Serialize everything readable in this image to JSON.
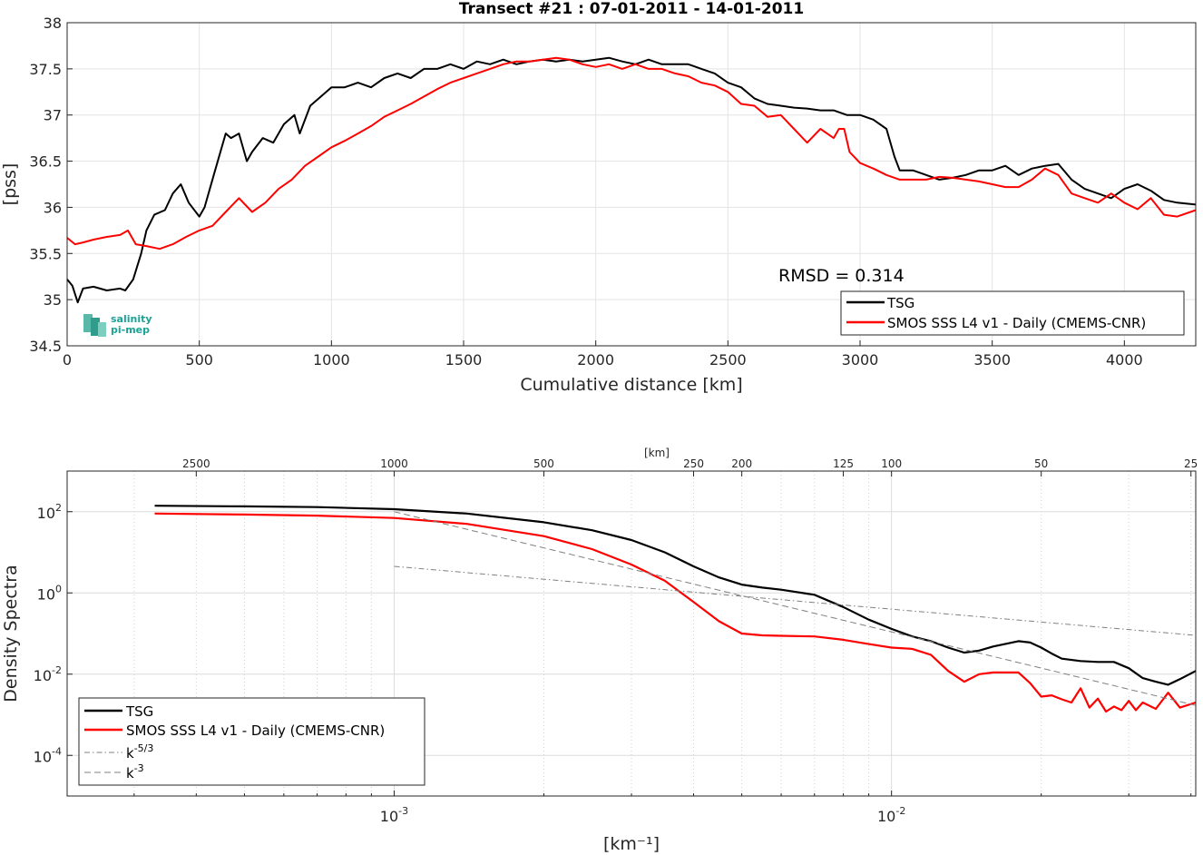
{
  "chart_data": [
    {
      "type": "line",
      "title": "Transect #21 : 07-01-2011 - 14-01-2011",
      "xlabel": "Cumulative distance [km]",
      "ylabel": "[pss]",
      "xlim": [
        0,
        4270
      ],
      "ylim": [
        34.5,
        38
      ],
      "xticks": [
        "0",
        "500",
        "1000",
        "1500",
        "2000",
        "2500",
        "3000",
        "3500",
        "4000"
      ],
      "yticks": [
        "34.5",
        "35",
        "35.5",
        "36",
        "36.5",
        "37",
        "37.5",
        "38"
      ],
      "grid": true,
      "legend_position": "bottom-right",
      "annotation": "RMSD = 0.314",
      "logo_lines": [
        "salinity",
        "pi-mep"
      ],
      "series": [
        {
          "name": "TSG",
          "color": "#000000",
          "x": [
            0,
            20,
            40,
            60,
            100,
            150,
            200,
            220,
            250,
            280,
            300,
            330,
            370,
            400,
            430,
            460,
            500,
            520,
            560,
            600,
            620,
            650,
            680,
            700,
            740,
            780,
            820,
            860,
            880,
            920,
            960,
            1000,
            1050,
            1100,
            1150,
            1200,
            1250,
            1300,
            1350,
            1400,
            1450,
            1500,
            1550,
            1600,
            1650,
            1700,
            1750,
            1800,
            1850,
            1900,
            1950,
            2000,
            2050,
            2100,
            2150,
            2200,
            2250,
            2300,
            2350,
            2400,
            2450,
            2500,
            2550,
            2600,
            2650,
            2700,
            2750,
            2800,
            2850,
            2900,
            2950,
            3000,
            3050,
            3100,
            3130,
            3150,
            3200,
            3250,
            3300,
            3350,
            3400,
            3450,
            3500,
            3550,
            3600,
            3650,
            3700,
            3750,
            3800,
            3850,
            3900,
            3950,
            4000,
            4050,
            4100,
            4150,
            4200,
            4270
          ],
          "y": [
            35.22,
            35.15,
            34.97,
            35.12,
            35.14,
            35.1,
            35.12,
            35.1,
            35.22,
            35.5,
            35.75,
            35.92,
            35.97,
            36.15,
            36.25,
            36.05,
            35.9,
            36.0,
            36.4,
            36.8,
            36.75,
            36.8,
            36.5,
            36.6,
            36.75,
            36.7,
            36.9,
            37.0,
            36.8,
            37.1,
            37.2,
            37.3,
            37.3,
            37.35,
            37.3,
            37.4,
            37.45,
            37.4,
            37.5,
            37.5,
            37.55,
            37.5,
            37.58,
            37.55,
            37.6,
            37.55,
            37.58,
            37.6,
            37.58,
            37.6,
            37.58,
            37.6,
            37.62,
            37.58,
            37.55,
            37.6,
            37.55,
            37.55,
            37.55,
            37.5,
            37.45,
            37.35,
            37.3,
            37.18,
            37.12,
            37.1,
            37.08,
            37.07,
            37.05,
            37.05,
            37.0,
            37.0,
            36.95,
            36.85,
            36.55,
            36.4,
            36.4,
            36.35,
            36.3,
            36.32,
            36.35,
            36.4,
            36.4,
            36.45,
            36.35,
            36.42,
            36.45,
            36.47,
            36.3,
            36.2,
            36.15,
            36.1,
            36.2,
            36.25,
            36.18,
            36.08,
            36.05,
            36.03
          ]
        },
        {
          "name": "SMOS SSS L4 v1 - Daily (CMEMS-CNR)",
          "color": "#ff0000",
          "x": [
            0,
            30,
            60,
            100,
            150,
            200,
            230,
            260,
            300,
            350,
            400,
            450,
            500,
            550,
            600,
            650,
            700,
            750,
            800,
            850,
            900,
            950,
            1000,
            1050,
            1100,
            1150,
            1200,
            1250,
            1300,
            1350,
            1400,
            1450,
            1500,
            1550,
            1600,
            1650,
            1700,
            1750,
            1800,
            1850,
            1900,
            1950,
            2000,
            2050,
            2100,
            2150,
            2200,
            2250,
            2300,
            2350,
            2400,
            2450,
            2500,
            2550,
            2600,
            2650,
            2700,
            2750,
            2800,
            2850,
            2900,
            2920,
            2940,
            2960,
            3000,
            3050,
            3100,
            3150,
            3200,
            3250,
            3300,
            3350,
            3400,
            3450,
            3500,
            3550,
            3600,
            3650,
            3700,
            3750,
            3800,
            3850,
            3900,
            3950,
            4000,
            4050,
            4100,
            4150,
            4200,
            4270
          ],
          "y": [
            35.67,
            35.6,
            35.62,
            35.65,
            35.68,
            35.7,
            35.75,
            35.6,
            35.58,
            35.55,
            35.6,
            35.68,
            35.75,
            35.8,
            35.95,
            36.1,
            35.95,
            36.05,
            36.2,
            36.3,
            36.45,
            36.55,
            36.65,
            36.72,
            36.8,
            36.88,
            36.98,
            37.05,
            37.12,
            37.2,
            37.28,
            37.35,
            37.4,
            37.45,
            37.5,
            37.55,
            37.58,
            37.58,
            37.6,
            37.62,
            37.6,
            37.55,
            37.52,
            37.55,
            37.5,
            37.55,
            37.5,
            37.5,
            37.45,
            37.42,
            37.35,
            37.32,
            37.25,
            37.12,
            37.1,
            36.98,
            37.0,
            36.85,
            36.7,
            36.85,
            36.75,
            36.85,
            36.85,
            36.6,
            36.48,
            36.42,
            36.35,
            36.3,
            36.3,
            36.3,
            36.33,
            36.32,
            36.3,
            36.28,
            36.25,
            36.22,
            36.22,
            36.3,
            36.42,
            36.35,
            36.15,
            36.1,
            36.05,
            36.15,
            36.05,
            35.98,
            36.1,
            35.92,
            35.9,
            35.97
          ]
        }
      ]
    },
    {
      "type": "line",
      "xlabel": "[km⁻¹]",
      "ylabel": "Density Spectra",
      "x_scale": "log",
      "y_scale": "log",
      "xlim": [
        0.00022,
        0.0409
      ],
      "ylim": [
        1e-05,
        1000
      ],
      "xticks": [
        0.001,
        0.01
      ],
      "yticks": [
        0.0001,
        0.01,
        1,
        100
      ],
      "top_axis_label": "[km]",
      "top_ticks": [
        "2500",
        "1000",
        "500",
        "250",
        "200",
        "125",
        "100",
        "50",
        "25"
      ],
      "grid": true,
      "legend_position": "bottom-left",
      "series": [
        {
          "name": "TSG",
          "color": "#000000",
          "x": [
            0.00033,
            0.0005,
            0.0007,
            0.001,
            0.0014,
            0.002,
            0.0025,
            0.003,
            0.0035,
            0.004,
            0.0045,
            0.005,
            0.0055,
            0.006,
            0.007,
            0.008,
            0.009,
            0.01,
            0.011,
            0.012,
            0.013,
            0.014,
            0.015,
            0.016,
            0.018,
            0.019,
            0.02,
            0.021,
            0.022,
            0.024,
            0.026,
            0.028,
            0.03,
            0.032,
            0.034,
            0.036,
            0.038,
            0.0409
          ],
          "y": [
            140,
            135,
            130,
            115,
            90,
            55,
            35,
            20,
            10,
            4.5,
            2.4,
            1.6,
            1.35,
            1.2,
            0.9,
            0.45,
            0.22,
            0.13,
            0.085,
            0.065,
            0.045,
            0.034,
            0.038,
            0.048,
            0.065,
            0.06,
            0.045,
            0.032,
            0.024,
            0.021,
            0.02,
            0.02,
            0.014,
            0.008,
            0.0065,
            0.0055,
            0.0075,
            0.012
          ]
        },
        {
          "name": "SMOS SSS L4 v1 - Daily (CMEMS-CNR)",
          "color": "#ff0000",
          "x": [
            0.00033,
            0.0005,
            0.0007,
            0.001,
            0.0014,
            0.002,
            0.0025,
            0.003,
            0.0035,
            0.004,
            0.0045,
            0.005,
            0.0055,
            0.006,
            0.007,
            0.008,
            0.009,
            0.01,
            0.011,
            0.012,
            0.013,
            0.014,
            0.015,
            0.016,
            0.018,
            0.019,
            0.02,
            0.021,
            0.022,
            0.023,
            0.024,
            0.025,
            0.026,
            0.027,
            0.028,
            0.029,
            0.03,
            0.031,
            0.032,
            0.034,
            0.036,
            0.038,
            0.0409
          ],
          "y": [
            90,
            85,
            80,
            70,
            50,
            25,
            12,
            5,
            2,
            0.6,
            0.2,
            0.1,
            0.09,
            0.088,
            0.085,
            0.07,
            0.055,
            0.045,
            0.042,
            0.03,
            0.012,
            0.0065,
            0.01,
            0.011,
            0.011,
            0.006,
            0.0028,
            0.003,
            0.0024,
            0.002,
            0.0045,
            0.0015,
            0.0025,
            0.0012,
            0.0016,
            0.0013,
            0.0022,
            0.0013,
            0.002,
            0.0014,
            0.0035,
            0.0015,
            0.002
          ]
        },
        {
          "name": "k⁻⁵ᐟ³",
          "color": "#808080",
          "x": [
            0.001,
            0.0409
          ],
          "y": [
            4.5,
            0.09
          ]
        },
        {
          "name": "k⁻³",
          "color": "#808080",
          "x": [
            0.001,
            0.0409
          ],
          "y": [
            100,
            0.0017
          ]
        }
      ],
      "legend_entries": [
        {
          "label": "TSG",
          "sup": ""
        },
        {
          "label": "SMOS SSS L4 v1 - Daily (CMEMS-CNR)",
          "sup": ""
        },
        {
          "label": "k",
          "sup": "-5/3"
        },
        {
          "label": "k",
          "sup": "-3"
        }
      ]
    }
  ]
}
